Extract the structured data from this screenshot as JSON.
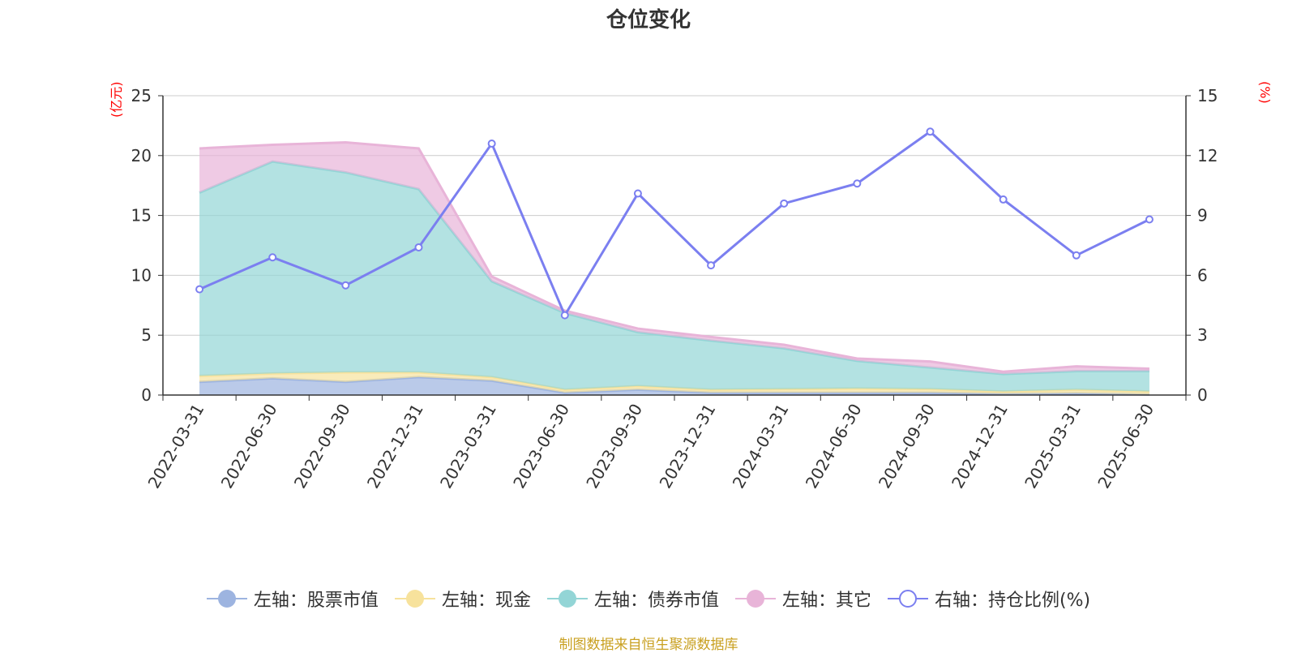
{
  "chart_data": {
    "type": "area",
    "title": "仓位变化",
    "left_axis_unit": "(亿元)",
    "right_axis_unit": "(%)",
    "categories": [
      "2022-03-31",
      "2022-06-30",
      "2022-09-30",
      "2022-12-31",
      "2023-03-31",
      "2023-06-30",
      "2023-09-30",
      "2023-12-31",
      "2024-03-31",
      "2024-06-30",
      "2024-09-30",
      "2024-12-31",
      "2025-03-31",
      "2025-06-30"
    ],
    "left_ylim": [
      0,
      25
    ],
    "left_ticks": [
      "0",
      "5",
      "10",
      "15",
      "20",
      "25"
    ],
    "right_ylim": [
      0,
      15
    ],
    "right_ticks": [
      "0",
      "3",
      "6",
      "9",
      "12",
      "15"
    ],
    "grid": true,
    "legend_position": "bottom",
    "series": [
      {
        "name": "左轴：股票市值",
        "axis": "left",
        "stacked": true,
        "color": "#9db4e0",
        "values": [
          1.1,
          1.4,
          1.1,
          1.5,
          1.2,
          0.2,
          0.45,
          0.2,
          0.2,
          0.2,
          0.2,
          0.1,
          0.15,
          0.05
        ]
      },
      {
        "name": "左轴：现金",
        "axis": "left",
        "stacked": true,
        "color": "#f7e29c",
        "values": [
          0.5,
          0.4,
          0.8,
          0.4,
          0.3,
          0.25,
          0.3,
          0.25,
          0.3,
          0.35,
          0.3,
          0.2,
          0.3,
          0.25
        ]
      },
      {
        "name": "左轴：债券市值",
        "axis": "left",
        "stacked": true,
        "color": "#93d5d6",
        "values": [
          15.3,
          17.7,
          16.7,
          15.3,
          8.0,
          6.4,
          4.5,
          4.1,
          3.4,
          2.3,
          1.8,
          1.45,
          1.55,
          1.7
        ]
      },
      {
        "name": "左轴：其它",
        "axis": "left",
        "stacked": true,
        "color": "#e8b4d8",
        "values": [
          3.7,
          1.4,
          2.5,
          3.4,
          0.4,
          0.2,
          0.3,
          0.3,
          0.3,
          0.2,
          0.5,
          0.2,
          0.4,
          0.2
        ]
      },
      {
        "name": "右轴：持仓比例(%)",
        "axis": "right",
        "type": "line",
        "color": "#7b7ff0",
        "values": [
          5.3,
          6.9,
          5.5,
          7.4,
          12.6,
          4.0,
          10.1,
          6.5,
          9.6,
          10.6,
          13.2,
          9.8,
          7.0,
          8.8
        ]
      }
    ]
  },
  "source_text": "制图数据来自恒生聚源数据库"
}
